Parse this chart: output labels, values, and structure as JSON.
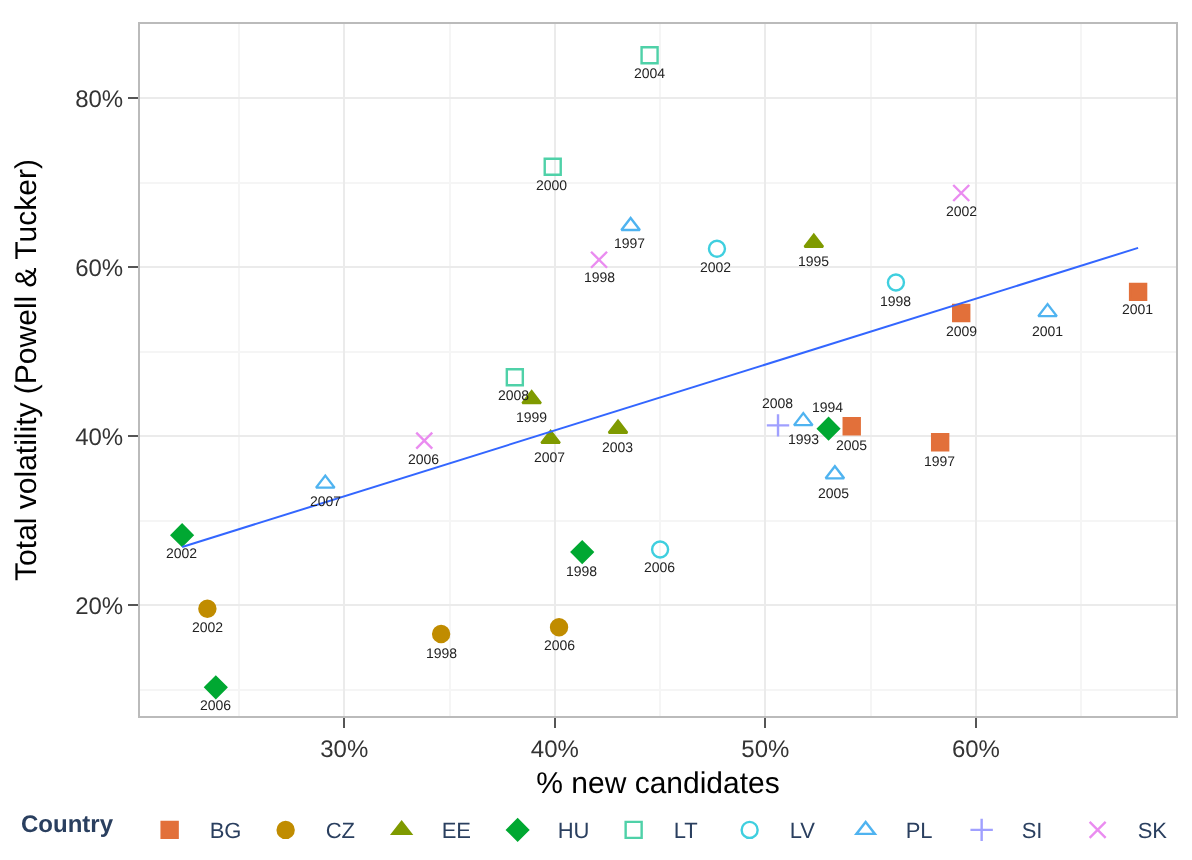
{
  "chart_data": {
    "type": "scatter",
    "xlabel": "% new candidates",
    "ylabel": "Total volatility (Powell & Tucker)",
    "legend_title": "Country",
    "legend": "bottom",
    "grid": true,
    "xlim": [
      20.3,
      69.5
    ],
    "ylim": [
      6.9,
      88.8
    ],
    "xticks": [
      {
        "value": 30,
        "label": "30%"
      },
      {
        "value": 40,
        "label": "40%"
      },
      {
        "value": 50,
        "label": "50%"
      },
      {
        "value": 60,
        "label": "60%"
      }
    ],
    "yticks": [
      {
        "value": 20,
        "label": "20%"
      },
      {
        "value": 40,
        "label": "40%"
      },
      {
        "value": 60,
        "label": "60%"
      },
      {
        "value": 80,
        "label": "80%"
      }
    ],
    "series": [
      {
        "name": "BG",
        "color": "#e2703a",
        "marker": "square",
        "x": [
          54.1,
          59.3,
          58.3,
          67.7
        ],
        "values": [
          41.2,
          54.6,
          39.3,
          57.1
        ]
      },
      {
        "name": "CZ",
        "color": "#c08c00",
        "marker": "circle",
        "x": [
          23.5,
          34.6,
          40.2
        ],
        "values": [
          19.6,
          16.6,
          17.4
        ]
      },
      {
        "name": "EE",
        "color": "#7f9a00",
        "marker": "triangle",
        "x": [
          38.9,
          39.8,
          43.0,
          52.3
        ],
        "values": [
          44.4,
          39.7,
          40.9,
          62.9
        ]
      },
      {
        "name": "HU",
        "color": "#00a832",
        "marker": "diamond",
        "x": [
          22.3,
          23.9,
          41.3,
          53.0
        ],
        "values": [
          28.3,
          10.3,
          26.3,
          40.9
        ]
      },
      {
        "name": "LT",
        "color": "#4fd1a8",
        "marker": "square-open",
        "x": [
          38.1,
          39.9,
          44.5
        ],
        "values": [
          47.0,
          71.9,
          85.1
        ]
      },
      {
        "name": "LV",
        "color": "#3fcfdf",
        "marker": "circle-open",
        "x": [
          45.0,
          47.7,
          56.2
        ],
        "values": [
          26.6,
          62.2,
          58.2
        ]
      },
      {
        "name": "PL",
        "color": "#4fb3f0",
        "marker": "triangle-open",
        "x": [
          29.1,
          43.6,
          51.8,
          53.3,
          63.4
        ],
        "values": [
          34.4,
          64.9,
          41.8,
          35.5,
          54.7
        ]
      },
      {
        "name": "SI",
        "color": "#a0a0ff",
        "marker": "cross",
        "x": [
          50.6
        ],
        "values": [
          41.3
        ]
      },
      {
        "name": "SK",
        "color": "#ea8cf0",
        "marker": "x",
        "x": [
          33.8,
          42.1,
          59.3
        ],
        "values": [
          39.5,
          60.9,
          68.8
        ]
      },
      {
        "type": "line",
        "color": "#3366ff",
        "x": [
          22.3,
          67.7
        ],
        "values": [
          26.9,
          62.3
        ]
      }
    ],
    "annotations": [
      {
        "text": "2005",
        "x": 54.1,
        "y": 41.2
      },
      {
        "text": "2009",
        "x": 59.3,
        "y": 54.6
      },
      {
        "text": "1997",
        "x": 58.3,
        "y": 39.3
      },
      {
        "text": "2001",
        "x": 67.7,
        "y": 57.1
      },
      {
        "text": "2002",
        "x": 23.5,
        "y": 19.6
      },
      {
        "text": "1998",
        "x": 34.6,
        "y": 16.6
      },
      {
        "text": "2006",
        "x": 40.2,
        "y": 17.4
      },
      {
        "text": "1999",
        "x": 38.9,
        "y": 44.4
      },
      {
        "text": "2007",
        "x": 39.8,
        "y": 39.7
      },
      {
        "text": "2003",
        "x": 43.0,
        "y": 40.9
      },
      {
        "text": "1995",
        "x": 52.3,
        "y": 62.9
      },
      {
        "text": "2002",
        "x": 22.3,
        "y": 28.3
      },
      {
        "text": "2006",
        "x": 23.9,
        "y": 10.3
      },
      {
        "text": "1998",
        "x": 41.3,
        "y": 26.3
      },
      {
        "text": "1994",
        "x": 53.0,
        "y": 40.9
      },
      {
        "text": "2008",
        "x": 38.1,
        "y": 47.0
      },
      {
        "text": "2000",
        "x": 39.9,
        "y": 71.9
      },
      {
        "text": "2004",
        "x": 44.5,
        "y": 85.1
      },
      {
        "text": "2006",
        "x": 45.0,
        "y": 26.6
      },
      {
        "text": "2002",
        "x": 47.7,
        "y": 62.2
      },
      {
        "text": "1998",
        "x": 56.2,
        "y": 58.2
      },
      {
        "text": "2007",
        "x": 29.1,
        "y": 34.4
      },
      {
        "text": "1997",
        "x": 43.6,
        "y": 64.9
      },
      {
        "text": "1993",
        "x": 51.8,
        "y": 41.8
      },
      {
        "text": "2005",
        "x": 53.3,
        "y": 35.5
      },
      {
        "text": "2001",
        "x": 63.4,
        "y": 54.7
      },
      {
        "text": "2008",
        "x": 50.6,
        "y": 41.3
      },
      {
        "text": "2006",
        "x": 33.8,
        "y": 39.5
      },
      {
        "text": "1998",
        "x": 42.1,
        "y": 60.9
      },
      {
        "text": "2002",
        "x": 59.3,
        "y": 68.8
      }
    ]
  }
}
